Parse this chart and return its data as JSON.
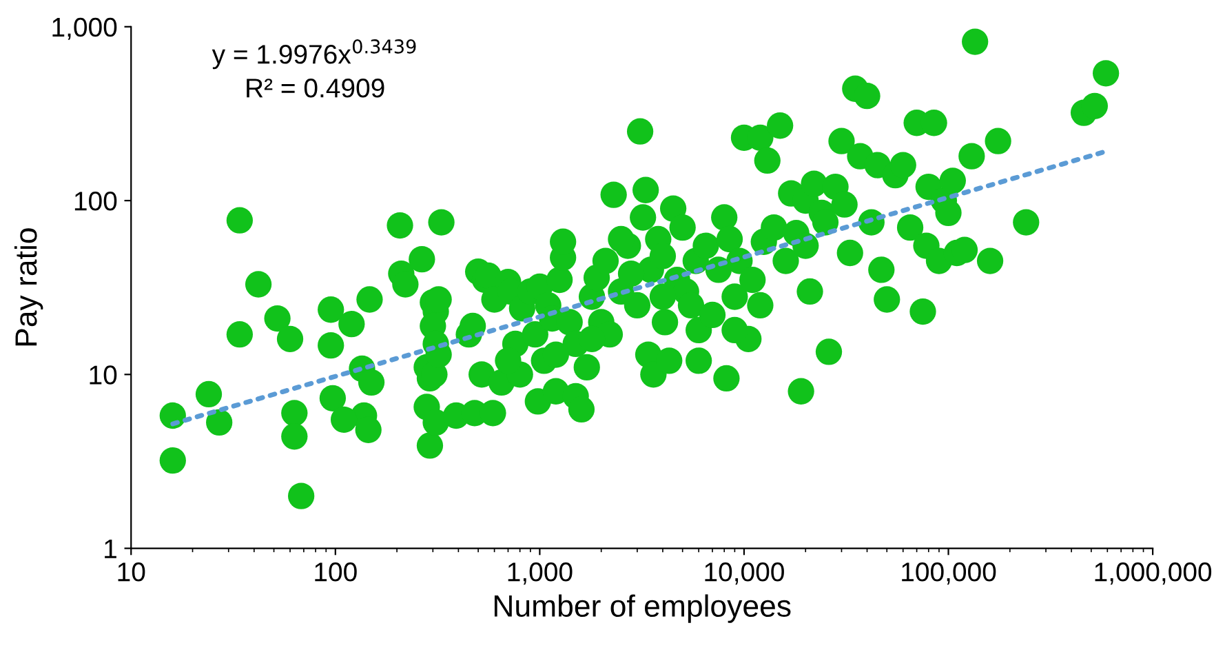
{
  "chart_data": {
    "type": "scatter",
    "xlabel": "Number of employees",
    "ylabel": "Pay ratio",
    "log": "xy",
    "marker": "circle",
    "xlim": [
      10,
      1000000
    ],
    "ylim": [
      1,
      1000
    ],
    "xticks": [
      10,
      100,
      {
        "value": 1000,
        "label": "1,000"
      },
      {
        "value": 10000,
        "label": "10,000"
      },
      {
        "value": 100000,
        "label": "100,000"
      },
      {
        "value": 1000000,
        "label": "1,000,000"
      }
    ],
    "yticks": [
      1,
      10,
      100,
      {
        "value": 1000,
        "label": "1,000"
      }
    ],
    "annotations": [
      "y = 1.9976x$^{0.3439}$",
      "R² = 0.4909"
    ],
    "series": [
      {
        "color": "#11c21b",
        "x": [
          16,
          16,
          24,
          27,
          34,
          34,
          42,
          52,
          60,
          63,
          63,
          68,
          95,
          95,
          97,
          120,
          147,
          135,
          150,
          138,
          145,
          110,
          207,
          210,
          220,
          265,
          330,
          300,
          310,
          300,
          320,
          310,
          280,
          290,
          305,
          320,
          280,
          290,
          310,
          390,
          450,
          470,
          500,
          520,
          480,
          540,
          560,
          600,
          590,
          650,
          700,
          720,
          760,
          800,
          820,
          900,
          950,
          980,
          1000,
          1050,
          1100,
          1150,
          1200,
          1250,
          1300,
          1300,
          1400,
          1500,
          1500,
          1600,
          1700,
          1800,
          1900,
          2000,
          2100,
          2200,
          2300,
          2500,
          2700,
          3000,
          3100,
          3200,
          3300,
          3400,
          3500,
          3600,
          3800,
          4000,
          4100,
          4300,
          4500,
          4700,
          5000,
          5200,
          5500,
          5800,
          6000,
          6500,
          7000,
          7500,
          8000,
          8200,
          8500,
          9000,
          9500,
          10000,
          10500,
          11000,
          12000,
          12500,
          13000,
          14000,
          15000,
          16000,
          17000,
          18000,
          19000,
          20000,
          21000,
          22000,
          24000,
          26000,
          28000,
          30000,
          31000,
          33000,
          35000,
          37000,
          40000,
          42000,
          45000,
          47000,
          50000,
          55000,
          60000,
          65000,
          70000,
          75000,
          78000,
          80000,
          85000,
          90000,
          95000,
          100000,
          105000,
          110000,
          120000,
          135000,
          130000,
          160000,
          175000,
          240000,
          460000,
          520000,
          590000,
          700,
          1200,
          1800,
          2500,
          2800,
          4000,
          6000,
          9000,
          12000,
          20000,
          25000
        ],
        "values": [
          5.8,
          3.2,
          7.7,
          5.3,
          77,
          17,
          33,
          21,
          16,
          6,
          4.4,
          2,
          23.6,
          14.7,
          7.3,
          19.5,
          27,
          10.8,
          9,
          5.8,
          4.8,
          5.5,
          72,
          38,
          33,
          46,
          75,
          26,
          23,
          19,
          27,
          15,
          11,
          9.5,
          10,
          13,
          6.5,
          3.9,
          5.3,
          5.8,
          17,
          19,
          39,
          10,
          6,
          35,
          37,
          27,
          6,
          9,
          34,
          30,
          15,
          10,
          24,
          30,
          17,
          7,
          32,
          12,
          25,
          21,
          8,
          35,
          47,
          58,
          20,
          15,
          7.5,
          6.3,
          11,
          28,
          36,
          20,
          45,
          17,
          108,
          30,
          55,
          25,
          250,
          80,
          115,
          13,
          40,
          10,
          60,
          48,
          20,
          12,
          90,
          35,
          70,
          30,
          25,
          45,
          18,
          55,
          22,
          40,
          80,
          9.5,
          60,
          28,
          45,
          230,
          16,
          35,
          230,
          58,
          170,
          70,
          270,
          45,
          110,
          65,
          8,
          100,
          30,
          125,
          85,
          13.5,
          120,
          220,
          95,
          50,
          440,
          180,
          400,
          75,
          160,
          40,
          27,
          140,
          160,
          70,
          280,
          23,
          55,
          120,
          280,
          45,
          100,
          85,
          130,
          50,
          52,
          820,
          180,
          45,
          220,
          75,
          320,
          350,
          540,
          12,
          13,
          16,
          60,
          38,
          28,
          12,
          18,
          25,
          55,
          75
        ]
      },
      {
        "type": "line",
        "color": "#5b9bd5",
        "line_style": "dotted",
        "marker": "none",
        "x": [
          16,
          600000
        ],
        "values": [
          5.2,
          193
        ]
      }
    ]
  }
}
